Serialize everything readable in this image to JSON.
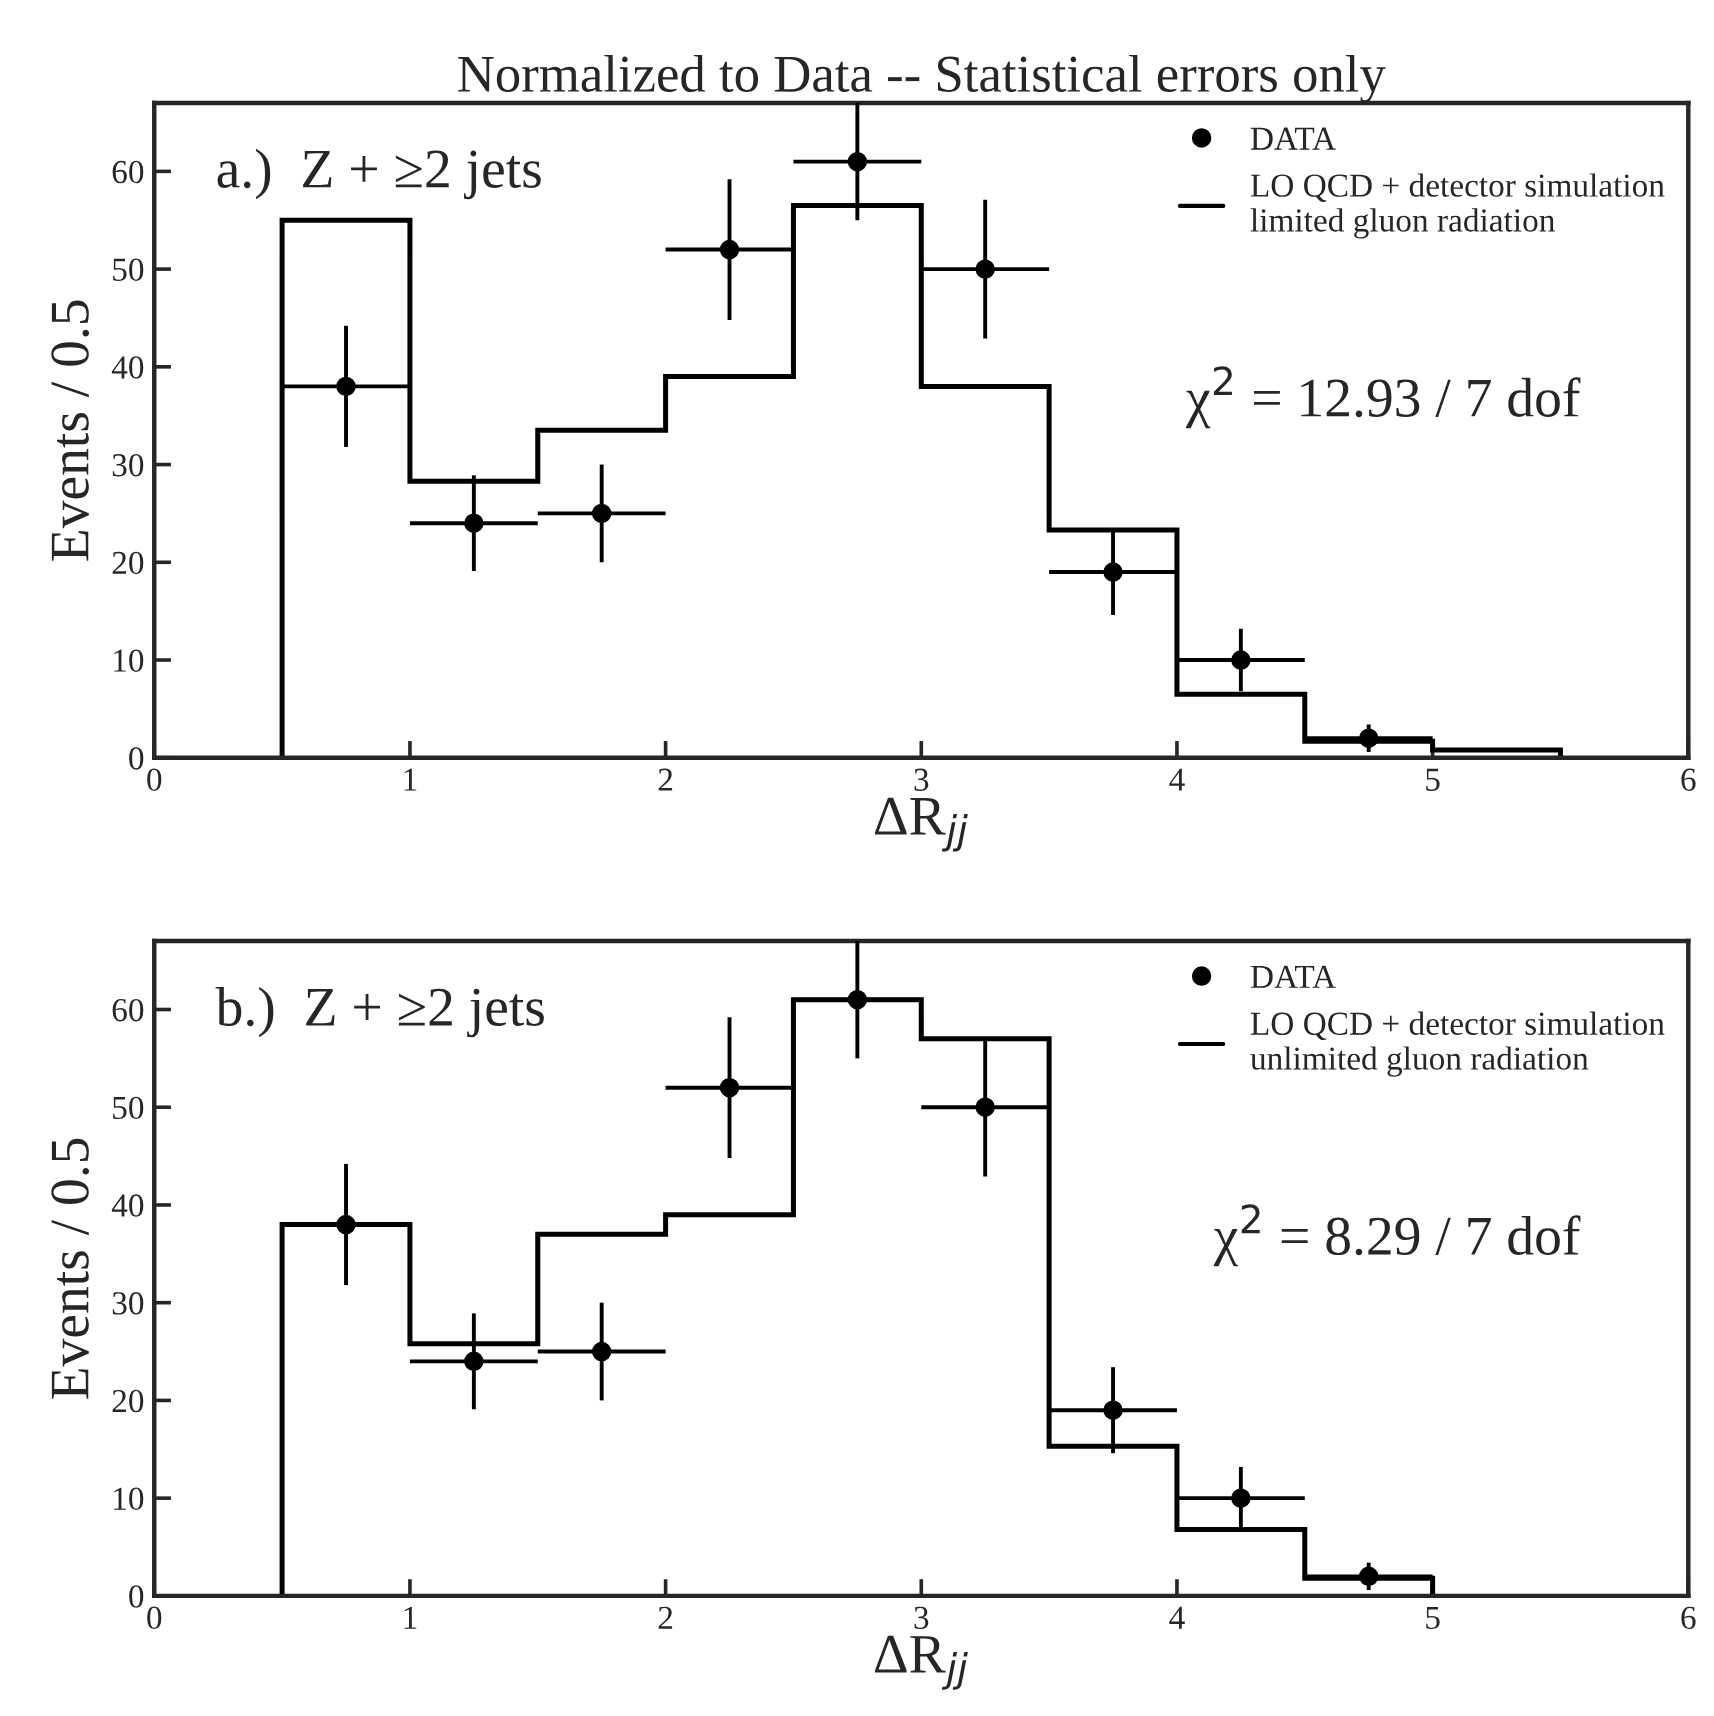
{
  "chart_data": [
    {
      "type": "histogram",
      "title": "Normalized to Data -- Statistical errors only",
      "xlabel": "ΔR$_{jj}$",
      "ylabel": "Events / 0.5",
      "xlim": [
        0,
        6
      ],
      "ylim": [
        0,
        67
      ],
      "xticks": [
        0,
        1,
        2,
        3,
        4,
        5,
        6
      ],
      "yticks": [
        0,
        10,
        20,
        30,
        40,
        50,
        60
      ],
      "grid": false,
      "legend": "top right",
      "annotations": [
        "a.)  Z + ≥2 jets",
        "χ$^{2}$ = 12.93 / 7 dof"
      ],
      "series": [
        {
          "name": "DATA",
          "type": "scatter",
          "color": "#000000",
          "marker": "circle",
          "x": [
            0.75,
            1.25,
            1.75,
            2.25,
            2.75,
            3.25,
            3.75,
            4.25,
            4.75
          ],
          "values": [
            38,
            24,
            25,
            52,
            61,
            50,
            19,
            10,
            2
          ],
          "errors": [
            6.2,
            4.9,
            5,
            7.2,
            6,
            7.1,
            4.4,
            3.2,
            1.4
          ],
          "xerrors": [
            0.25,
            0.25,
            0.25,
            0.25,
            0.25,
            0.25,
            0.25,
            0.25,
            0.25
          ]
        },
        {
          "name": "LO QCD + detector simulation\nlimited gluon radiation",
          "color": "#000000",
          "bins": [
            0.5,
            1,
            1.5,
            2,
            2.5,
            3,
            3.5,
            4,
            4.5,
            5,
            5.5
          ],
          "values": [
            55,
            28.3,
            33.5,
            39,
            56.5,
            38,
            23.3,
            6.5,
            1.7,
            0.8
          ]
        }
      ]
    },
    {
      "type": "histogram",
      "xlabel": "ΔR$_{jj}$",
      "ylabel": "Events / 0.5",
      "xlim": [
        0,
        6
      ],
      "ylim": [
        0,
        67
      ],
      "xticks": [
        0,
        1,
        2,
        3,
        4,
        5,
        6
      ],
      "yticks": [
        0,
        10,
        20,
        30,
        40,
        50,
        60
      ],
      "grid": false,
      "legend": "top right",
      "annotations": [
        "b.)  Z + ≥2 jets",
        "χ$^{2}$ = 8.29 / 7 dof"
      ],
      "series": [
        {
          "name": "DATA",
          "type": "scatter",
          "color": "#000000",
          "marker": "circle",
          "x": [
            0.75,
            1.25,
            1.75,
            2.25,
            2.75,
            3.25,
            3.75,
            4.25,
            4.75
          ],
          "values": [
            38,
            24,
            25,
            52,
            61,
            50,
            19,
            10,
            2
          ],
          "errors": [
            6.2,
            4.9,
            5,
            7.2,
            6,
            7.1,
            4.4,
            3.2,
            1.4
          ],
          "xerrors": [
            0.25,
            0.25,
            0.25,
            0.25,
            0.25,
            0.25,
            0.25,
            0.25,
            0.25
          ]
        },
        {
          "name": "LO QCD + detector simulation\nunlimited gluon radiation",
          "color": "#000000",
          "bins": [
            0.5,
            1,
            1.5,
            2,
            2.5,
            3,
            3.5,
            4,
            4.5,
            5
          ],
          "values": [
            38,
            25.8,
            37,
            39,
            61,
            57,
            15.3,
            6.8,
            1.8
          ]
        }
      ]
    }
  ]
}
